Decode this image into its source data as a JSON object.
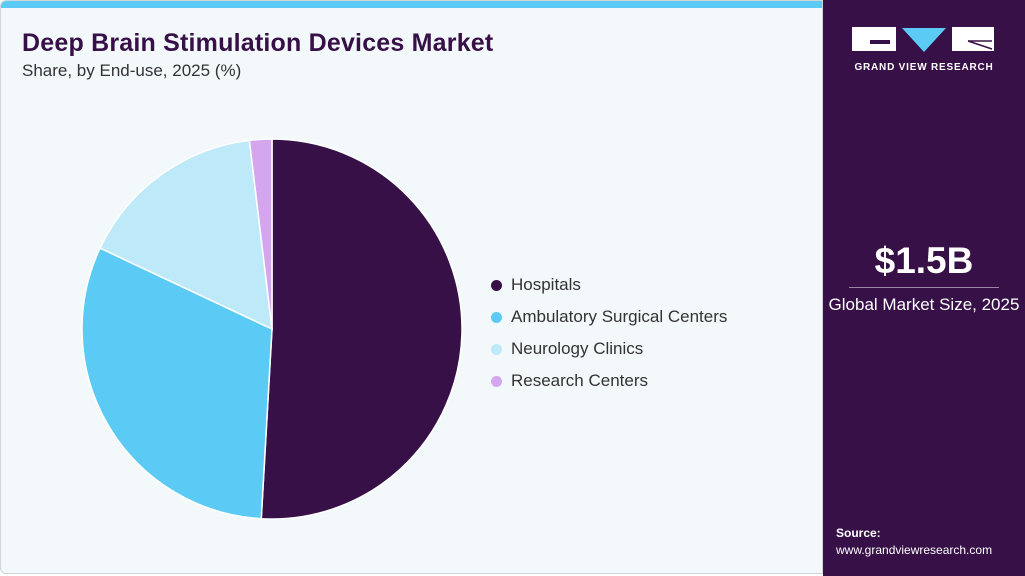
{
  "header": {
    "title": "Deep Brain Stimulation Devices Market",
    "subtitle": "Share, by End-use, 2025 (%)"
  },
  "chart_data": {
    "type": "pie",
    "title": "Deep Brain Stimulation Devices Market",
    "subtitle": "Share, by End-use, 2025 (%)",
    "categories": [
      "Hospitals",
      "Ambulatory Surgical Centers",
      "Neurology Clinics",
      "Research Centers"
    ],
    "values": [
      50.9,
      31.1,
      16.1,
      1.9
    ],
    "colors": [
      "#371047",
      "#5BCBF5",
      "#BDE9F9",
      "#D4A6EE"
    ],
    "start": "top",
    "direction": "clockwise",
    "legend_placement": "right"
  },
  "sidebar": {
    "logo_text": "GRAND VIEW RESEARCH",
    "market_size": "$1.5B",
    "market_label": "Global Market Size, 2025",
    "source_label": "Source:",
    "source_url": "www.grandviewresearch.com"
  }
}
